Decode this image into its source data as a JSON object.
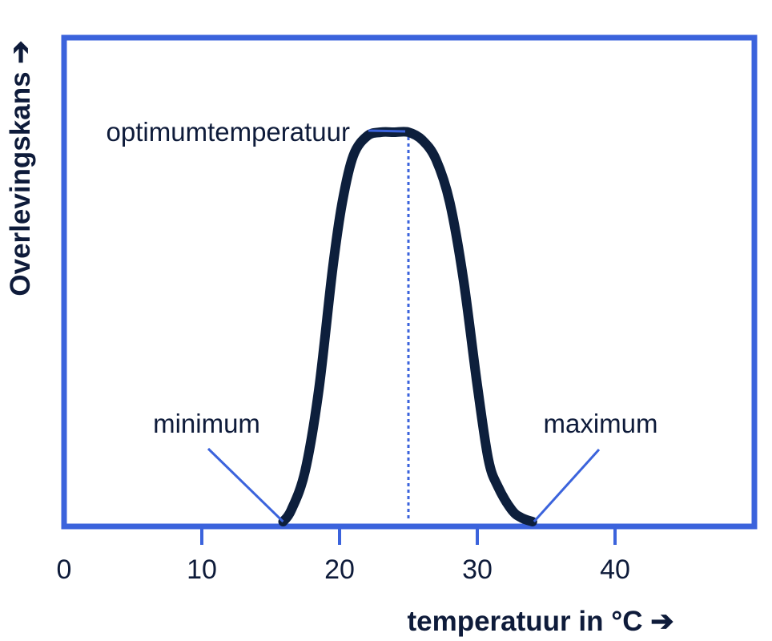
{
  "chart_data": {
    "type": "line",
    "xlabel": "temperatuur in °C ➔",
    "ylabel": "Overlevingskans ➔",
    "xlim": [
      0,
      52
    ],
    "ylim": [
      0,
      1.1
    ],
    "x_ticks": [
      0,
      10,
      20,
      30,
      40
    ],
    "grid": false,
    "legend": "none",
    "series": [
      {
        "x": [
          15.9,
          16.5,
          17.5,
          18.5,
          19.5,
          20.2,
          21.0,
          22.0,
          23.0,
          24.0,
          25.0,
          26.0,
          27.0,
          28.0,
          29.0,
          30.0,
          30.8,
          31.5,
          32.5,
          33.2,
          34.0
        ],
        "y": [
          0.0,
          0.03,
          0.13,
          0.34,
          0.65,
          0.82,
          0.94,
          0.99,
          1.0,
          1.0,
          1.0,
          0.98,
          0.93,
          0.82,
          0.62,
          0.35,
          0.16,
          0.09,
          0.03,
          0.01,
          0.0
        ]
      }
    ],
    "annotations": [
      {
        "id": "optimum",
        "text": "optimumtemperatuur",
        "x": 25.0,
        "y": 1.0
      },
      {
        "id": "minimum",
        "text": "minimum",
        "x": 15.9,
        "y": 0.0
      },
      {
        "id": "maximum",
        "text": "maximum",
        "x": 34.0,
        "y": 0.0
      }
    ],
    "colors": {
      "frame": "#3b63dc",
      "curve": "#0d1f3c",
      "text": "#0e1b3a"
    }
  }
}
